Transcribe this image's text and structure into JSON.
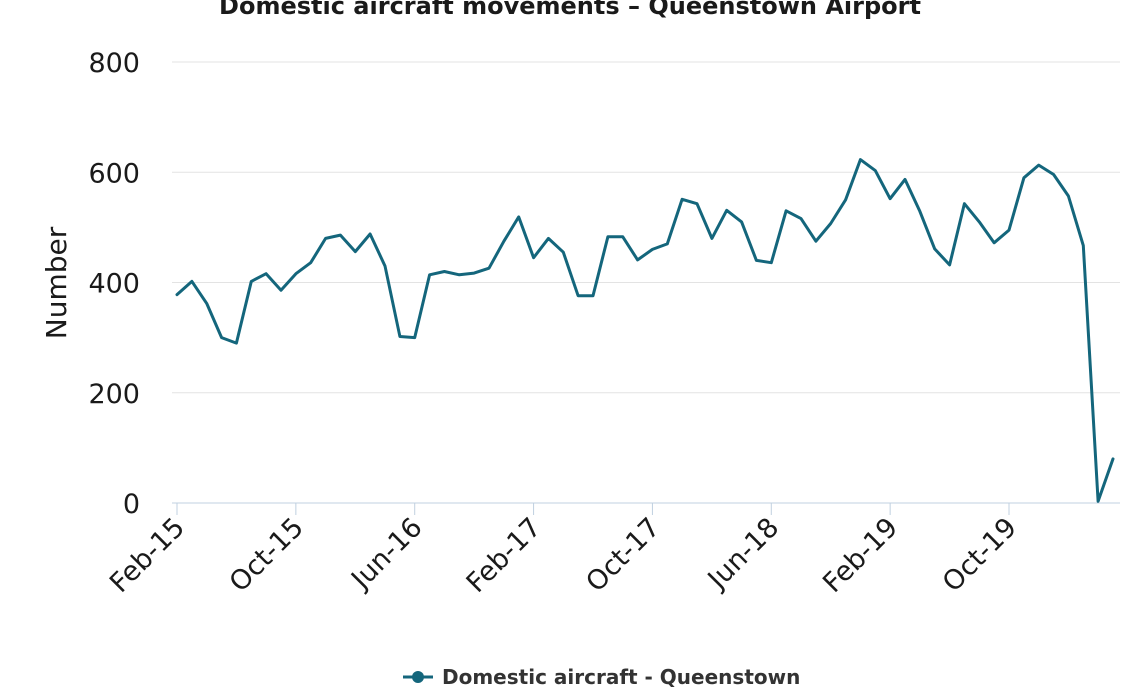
{
  "chart_data": {
    "type": "line",
    "title": "Domestic aircraft movements – Queenstown Airport",
    "xlabel": "",
    "ylabel": "Number",
    "ylim": [
      0,
      800
    ],
    "yticks": [
      0,
      200,
      400,
      600,
      800
    ],
    "grid": true,
    "legend_position": "bottom-center",
    "x_tick_labels": [
      "Feb-15",
      "Oct-15",
      "Jun-16",
      "Feb-17",
      "Oct-17",
      "Jun-18",
      "Feb-19",
      "Oct-19"
    ],
    "x": [
      "Feb-15",
      "Mar-15",
      "Apr-15",
      "May-15",
      "Jun-15",
      "Jul-15",
      "Aug-15",
      "Sep-15",
      "Oct-15",
      "Nov-15",
      "Dec-15",
      "Jan-16",
      "Feb-16",
      "Mar-16",
      "Apr-16",
      "May-16",
      "Jun-16",
      "Jul-16",
      "Aug-16",
      "Sep-16",
      "Oct-16",
      "Nov-16",
      "Dec-16",
      "Jan-17",
      "Feb-17",
      "Mar-17",
      "Apr-17",
      "May-17",
      "Jun-17",
      "Jul-17",
      "Aug-17",
      "Sep-17",
      "Oct-17",
      "Nov-17",
      "Dec-17",
      "Jan-18",
      "Feb-18",
      "Mar-18",
      "Apr-18",
      "May-18",
      "Jun-18",
      "Jul-18",
      "Aug-18",
      "Sep-18",
      "Oct-18",
      "Nov-18",
      "Dec-18",
      "Jan-19",
      "Feb-19",
      "Mar-19",
      "Apr-19",
      "May-19",
      "Jun-19",
      "Jul-19",
      "Aug-19",
      "Sep-19",
      "Oct-19",
      "Nov-19",
      "Dec-19",
      "Jan-20",
      "Feb-20",
      "Mar-20",
      "Apr-20",
      "May-20"
    ],
    "series": [
      {
        "name": "Domestic aircraft - Queenstown",
        "color": "#14667c",
        "values": [
          378,
          402,
          362,
          300,
          290,
          402,
          416,
          386,
          416,
          436,
          480,
          486,
          456,
          488,
          430,
          302,
          300,
          414,
          420,
          414,
          417,
          426,
          475,
          519,
          445,
          480,
          455,
          376,
          376,
          483,
          483,
          441,
          460,
          470,
          551,
          543,
          480,
          531,
          510,
          440,
          436,
          530,
          516,
          475,
          507,
          550,
          623,
          603,
          552,
          587,
          529,
          461,
          432,
          543,
          510,
          472,
          495,
          590,
          613,
          596,
          557,
          467,
          3,
          80
        ]
      }
    ]
  }
}
